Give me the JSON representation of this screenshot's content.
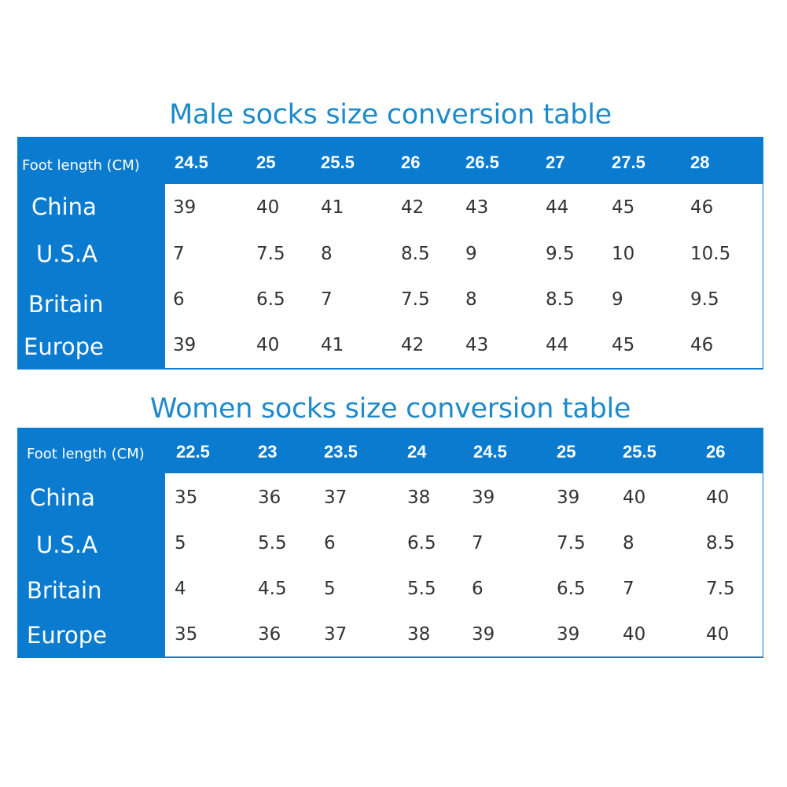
{
  "tables": [
    {
      "title": "Male socks size conversion table",
      "header_label": "Foot length (CM)",
      "columns": [
        "24.5",
        "25",
        "25.5",
        "26",
        "26.5",
        "27",
        "27.5",
        "28"
      ],
      "rows": [
        {
          "label": "China",
          "values": [
            "39",
            "40",
            "41",
            "42",
            "43",
            "44",
            "45",
            "46"
          ]
        },
        {
          "label": "U.S.A",
          "values": [
            "7",
            "7.5",
            "8",
            "8.5",
            "9",
            "9.5",
            "10",
            "10.5"
          ]
        },
        {
          "label": "Britain",
          "values": [
            "6",
            "6.5",
            "7",
            "7.5",
            "8",
            "8.5",
            "9",
            "9.5"
          ]
        },
        {
          "label": "Europe",
          "values": [
            "39",
            "40",
            "41",
            "42",
            "43",
            "44",
            "45",
            "46"
          ]
        }
      ]
    },
    {
      "title": "Women socks size conversion table",
      "header_label": "Foot length (CM)",
      "columns": [
        "22.5",
        "23",
        "23.5",
        "24",
        "24.5",
        "25",
        "25.5",
        "26"
      ],
      "rows": [
        {
          "label": "China",
          "values": [
            "35",
            "36",
            "37",
            "38",
            "39",
            "39",
            "40",
            "40"
          ]
        },
        {
          "label": "U.S.A",
          "values": [
            "5",
            "5.5",
            "6",
            "6.5",
            "7",
            "7.5",
            "8",
            "8.5"
          ]
        },
        {
          "label": "Britain",
          "values": [
            "4",
            "4.5",
            "5",
            "5.5",
            "6",
            "6.5",
            "7",
            "7.5"
          ]
        },
        {
          "label": "Europe",
          "values": [
            "35",
            "36",
            "37",
            "38",
            "39",
            "39",
            "40",
            "40"
          ]
        }
      ]
    }
  ],
  "colors": {
    "title": "#1e8ac9",
    "table_blue": "#0b7bcf",
    "cell_text": "#333333"
  }
}
